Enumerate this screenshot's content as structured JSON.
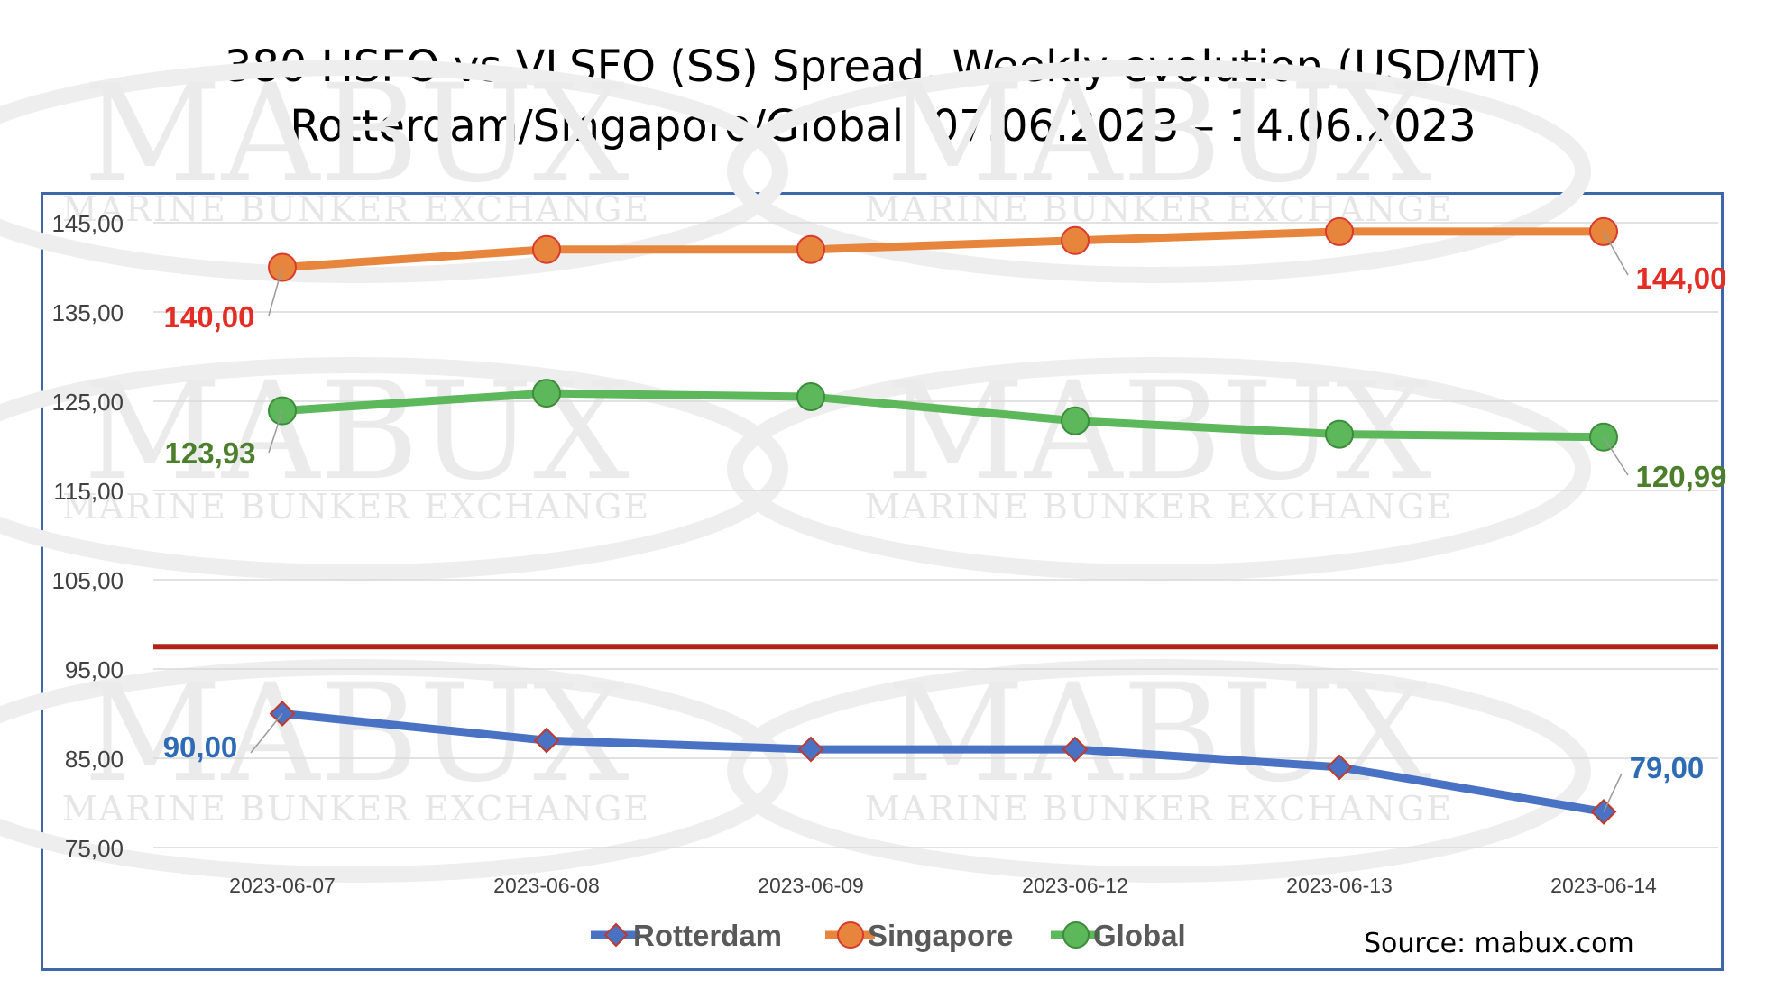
{
  "chart_data": {
    "type": "line",
    "title": "380 HSFO vs VLSFO (SS) Spread, Weekly evolution (USD/MT)",
    "subtitle": "Rotterdam/Singapore/Global, 07.06.2023 – 14.06.2023",
    "categories": [
      "2023-06-07",
      "2023-06-08",
      "2023-06-09",
      "2023-06-12",
      "2023-06-13",
      "2023-06-14"
    ],
    "ylim": [
      75,
      145
    ],
    "yticks": [
      75,
      85,
      95,
      105,
      115,
      125,
      135,
      145
    ],
    "ytick_labels": [
      "75,00",
      "85,00",
      "95,00",
      "105,00",
      "115,00",
      "125,00",
      "135,00",
      "145,00"
    ],
    "grid": true,
    "legend": "bottom",
    "reference_line": {
      "value": 97.5,
      "color": "#b02318"
    },
    "series": [
      {
        "name": "Rotterdam",
        "color": "#4a72c4",
        "marker": "diamond",
        "values": [
          90,
          87,
          86,
          86,
          84,
          79
        ],
        "first_label": "90,00",
        "last_label": "79,00",
        "label_color": "#2e6bb5"
      },
      {
        "name": "Singapore",
        "color": "#e8853d",
        "marker": "circle",
        "values": [
          140,
          142,
          142,
          143,
          144,
          144
        ],
        "first_label": "140,00",
        "last_label": "144,00",
        "label_color": "#e32d25"
      },
      {
        "name": "Global",
        "color": "#5cb85a",
        "marker": "circle",
        "values": [
          123.93,
          125.9,
          125.5,
          122.8,
          121.3,
          120.99
        ],
        "first_label": "123,93",
        "last_label": "120,99",
        "label_color": "#4c7f2c"
      }
    ],
    "source": "Source: mabux.com",
    "watermark": {
      "logo": "MABUX",
      "tagline": "MARINE BUNKER EXCHANGE"
    }
  }
}
